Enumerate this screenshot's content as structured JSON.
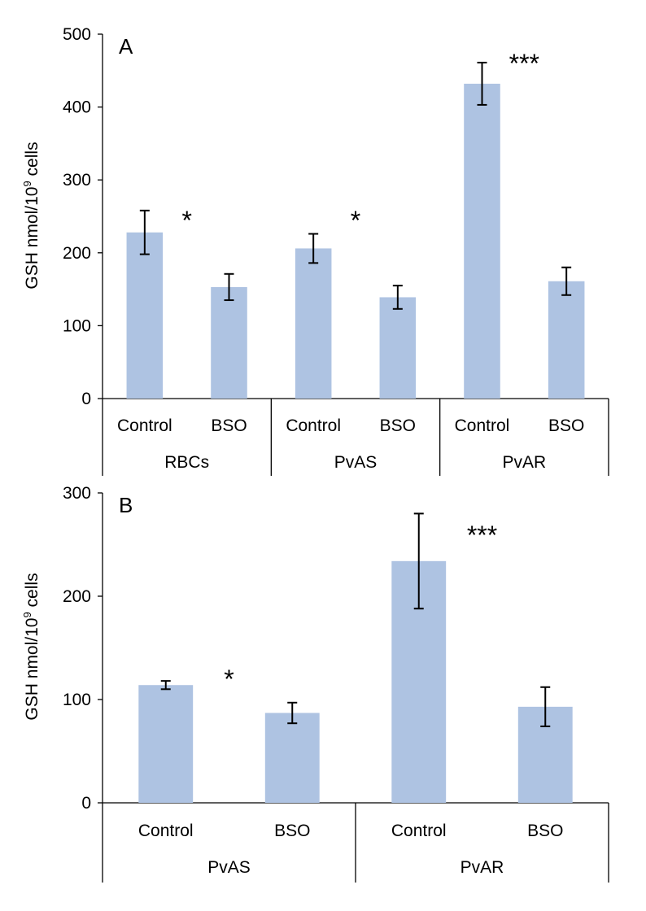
{
  "chart_data": [
    {
      "type": "bar",
      "panel_label": "A",
      "ylabel": "GSH nmol/10",
      "ylabel_sup": "9",
      "ylabel_tail": " cells",
      "ylim": [
        0,
        500
      ],
      "yticks": [
        0,
        100,
        200,
        300,
        400,
        500
      ],
      "grid": false,
      "bar_color": "#aec3e2",
      "categories": [
        "Control",
        "BSO",
        "Control",
        "BSO",
        "Control",
        "BSO"
      ],
      "groups": [
        "RBCs",
        "PvAS",
        "PvAR"
      ],
      "values": [
        228,
        153,
        206,
        139,
        432,
        161
      ],
      "errors": [
        30,
        18,
        20,
        16,
        29,
        19
      ],
      "significance": [
        "*",
        "*",
        "***"
      ]
    },
    {
      "type": "bar",
      "panel_label": "B",
      "ylabel": "GSH nmol/10",
      "ylabel_sup": "9",
      "ylabel_tail": " cells",
      "ylim": [
        0,
        300
      ],
      "yticks": [
        0,
        100,
        200,
        300
      ],
      "grid": false,
      "bar_color": "#aec3e2",
      "categories": [
        "Control",
        "BSO",
        "Control",
        "BSO"
      ],
      "groups": [
        "PvAS",
        "PvAR"
      ],
      "values": [
        114,
        87,
        234,
        93
      ],
      "errors": [
        4,
        10,
        46,
        19
      ],
      "significance": [
        "*",
        "***"
      ]
    }
  ]
}
